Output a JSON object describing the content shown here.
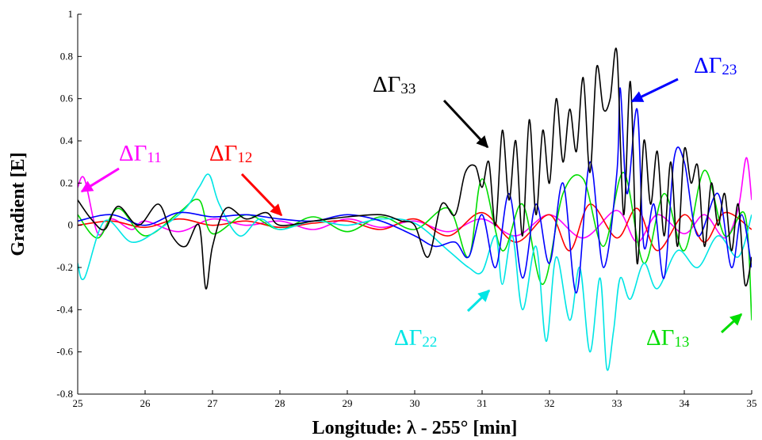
{
  "chart_data": {
    "type": "line",
    "xlabel": "Longitude: λ - 255° [min]",
    "ylabel": "Gradient [E]",
    "xlim": [
      25,
      35
    ],
    "ylim": [
      -0.8,
      1
    ],
    "xticks": [
      25,
      26,
      27,
      28,
      29,
      30,
      31,
      32,
      33,
      34,
      35
    ],
    "yticks": [
      -0.8,
      -0.6,
      -0.4,
      -0.2,
      0,
      0.2,
      0.4,
      0.6,
      0.8,
      1
    ],
    "ytick_labels": [
      "-0.8",
      "-0.6",
      "-0.4",
      "-0.2",
      "0",
      "0.2",
      "0.4",
      "0.6",
      "0.8",
      "1"
    ],
    "grid": false,
    "series": [
      {
        "name": "ΔΓ11",
        "color": "#ff00ff",
        "x": [
          25,
          25.1,
          25.3,
          25.5,
          25.8,
          26,
          26.5,
          27,
          27.5,
          28,
          28.5,
          29,
          29.5,
          30,
          30.5,
          31,
          31.5,
          32,
          32.5,
          33,
          33.3,
          33.6,
          34,
          34.3,
          34.6,
          34.8,
          34.92,
          35
        ],
        "y": [
          0.18,
          0.22,
          -0.04,
          0.03,
          -0.02,
          0.02,
          -0.03,
          0.03,
          0.0,
          0.02,
          -0.02,
          0.03,
          -0.01,
          0.02,
          -0.03,
          0.03,
          -0.05,
          0.05,
          -0.06,
          0.07,
          -0.08,
          0.05,
          -0.04,
          0.05,
          -0.06,
          0.08,
          0.32,
          0.12
        ]
      },
      {
        "name": "ΔΓ12",
        "color": "#ff0000",
        "x": [
          25,
          25.5,
          26,
          26.5,
          27,
          27.5,
          28,
          28.5,
          29,
          29.5,
          30,
          30.5,
          31,
          31.5,
          32,
          32.3,
          32.6,
          33,
          33.3,
          33.6,
          34,
          34.3,
          34.6,
          35
        ],
        "y": [
          0.0,
          0.02,
          -0.01,
          0.03,
          0.0,
          0.02,
          -0.01,
          0.01,
          0.02,
          -0.02,
          0.03,
          -0.05,
          0.06,
          -0.08,
          0.05,
          -0.12,
          0.1,
          -0.06,
          0.08,
          -0.12,
          0.05,
          -0.08,
          0.06,
          -0.02
        ]
      },
      {
        "name": "ΔΓ13",
        "color": "#00dd00",
        "x": [
          25,
          25.3,
          25.6,
          26,
          26.5,
          26.8,
          27,
          27.5,
          28,
          28.5,
          29,
          29.5,
          30,
          30.5,
          30.8,
          31,
          31.3,
          31.6,
          31.9,
          32.2,
          32.5,
          32.8,
          33.1,
          33.4,
          33.7,
          34,
          34.3,
          34.6,
          34.9,
          35
        ],
        "y": [
          0.05,
          -0.06,
          0.08,
          -0.05,
          0.06,
          0.12,
          -0.04,
          0.05,
          -0.02,
          0.04,
          -0.03,
          0.04,
          -0.02,
          0.08,
          -0.15,
          0.22,
          -0.12,
          0.1,
          -0.28,
          0.15,
          0.22,
          -0.1,
          0.25,
          -0.18,
          0.15,
          -0.12,
          0.26,
          -0.05,
          0.05,
          -0.45
        ]
      },
      {
        "name": "ΔΓ22",
        "color": "#00e5e5",
        "x": [
          25,
          25.1,
          25.4,
          25.8,
          26.2,
          26.6,
          26.8,
          26.95,
          27.1,
          27.4,
          27.7,
          28,
          28.5,
          29,
          29.5,
          30,
          30.5,
          30.8,
          31,
          31.2,
          31.3,
          31.45,
          31.6,
          31.8,
          31.95,
          32.1,
          32.3,
          32.45,
          32.6,
          32.75,
          32.85,
          32.95,
          33.05,
          33.2,
          33.4,
          33.6,
          33.9,
          34.2,
          34.5,
          34.8,
          35
        ],
        "y": [
          -0.18,
          -0.25,
          0.02,
          -0.08,
          -0.02,
          0.08,
          0.18,
          0.24,
          0.1,
          -0.05,
          0.03,
          -0.02,
          0.02,
          0.0,
          0.03,
          0.01,
          -0.12,
          -0.2,
          -0.22,
          -0.05,
          -0.28,
          -0.05,
          -0.4,
          -0.1,
          -0.55,
          -0.15,
          -0.45,
          -0.2,
          -0.6,
          -0.25,
          -0.68,
          -0.5,
          -0.25,
          -0.35,
          -0.18,
          -0.3,
          -0.12,
          -0.2,
          -0.05,
          -0.15,
          0.05
        ]
      },
      {
        "name": "ΔΓ23",
        "color": "#0000ff",
        "x": [
          25,
          25.5,
          26,
          26.5,
          27,
          27.5,
          28,
          28.5,
          29,
          29.5,
          30,
          30.3,
          30.6,
          30.8,
          31,
          31.2,
          31.4,
          31.6,
          31.8,
          32,
          32.2,
          32.4,
          32.6,
          32.8,
          33,
          33.05,
          33.15,
          33.3,
          33.4,
          33.55,
          33.7,
          33.85,
          34,
          34.2,
          34.5,
          34.7,
          34.85,
          35
        ],
        "y": [
          0.02,
          0.05,
          0.0,
          0.06,
          0.04,
          0.05,
          0.03,
          0.02,
          0.05,
          0.02,
          -0.05,
          -0.1,
          -0.08,
          -0.15,
          0.05,
          -0.2,
          0.15,
          -0.25,
          0.1,
          -0.18,
          0.2,
          -0.32,
          0.3,
          -0.2,
          0.25,
          0.65,
          0.15,
          0.55,
          -0.1,
          0.1,
          -0.25,
          0.32,
          0.3,
          -0.05,
          0.15,
          -0.2,
          0.05,
          -0.2
        ]
      },
      {
        "name": "ΔΓ33",
        "color": "#000000",
        "x": [
          25,
          25.2,
          25.4,
          25.6,
          25.9,
          26.2,
          26.4,
          26.6,
          26.8,
          26.9,
          27.0,
          27.2,
          27.5,
          27.8,
          28,
          28.5,
          29,
          29.5,
          29.8,
          30,
          30.2,
          30.4,
          30.6,
          30.75,
          30.9,
          31,
          31.1,
          31.2,
          31.3,
          31.4,
          31.5,
          31.6,
          31.7,
          31.8,
          31.9,
          32.0,
          32.1,
          32.2,
          32.3,
          32.4,
          32.5,
          32.6,
          32.7,
          32.8,
          32.9,
          33.0,
          33.1,
          33.2,
          33.3,
          33.4,
          33.5,
          33.6,
          33.7,
          33.8,
          33.9,
          34.0,
          34.1,
          34.2,
          34.3,
          34.4,
          34.5,
          34.6,
          34.7,
          34.8,
          34.9,
          35
        ],
        "y": [
          0.12,
          0.03,
          -0.02,
          0.09,
          0.0,
          0.1,
          -0.05,
          -0.1,
          0.0,
          -0.3,
          -0.1,
          0.08,
          0.03,
          0.06,
          0.0,
          0.02,
          0.04,
          0.05,
          0.02,
          0.0,
          -0.15,
          0.1,
          0.05,
          0.25,
          0.28,
          0.18,
          0.3,
          0.0,
          0.45,
          0.12,
          0.4,
          -0.05,
          0.5,
          0.05,
          0.45,
          0.2,
          0.6,
          0.3,
          0.55,
          0.35,
          0.7,
          0.25,
          0.75,
          0.55,
          0.6,
          0.82,
          0.05,
          0.68,
          -0.18,
          0.4,
          0.1,
          0.35,
          -0.05,
          0.3,
          -0.1,
          0.36,
          0.2,
          0.28,
          -0.1,
          0.2,
          0.0,
          0.15,
          -0.12,
          0.1,
          -0.28,
          -0.15
        ]
      }
    ],
    "annotations": [
      {
        "text": "ΔΓ",
        "sub": "11",
        "color": "#ff00ff"
      },
      {
        "text": "ΔΓ",
        "sub": "12",
        "color": "#ff0000"
      },
      {
        "text": "ΔΓ",
        "sub": "33",
        "color": "#000000"
      },
      {
        "text": "ΔΓ",
        "sub": "23",
        "color": "#0000ff"
      },
      {
        "text": "ΔΓ",
        "sub": "22",
        "color": "#00e5e5"
      },
      {
        "text": "ΔΓ",
        "sub": "13",
        "color": "#00dd00"
      }
    ]
  }
}
